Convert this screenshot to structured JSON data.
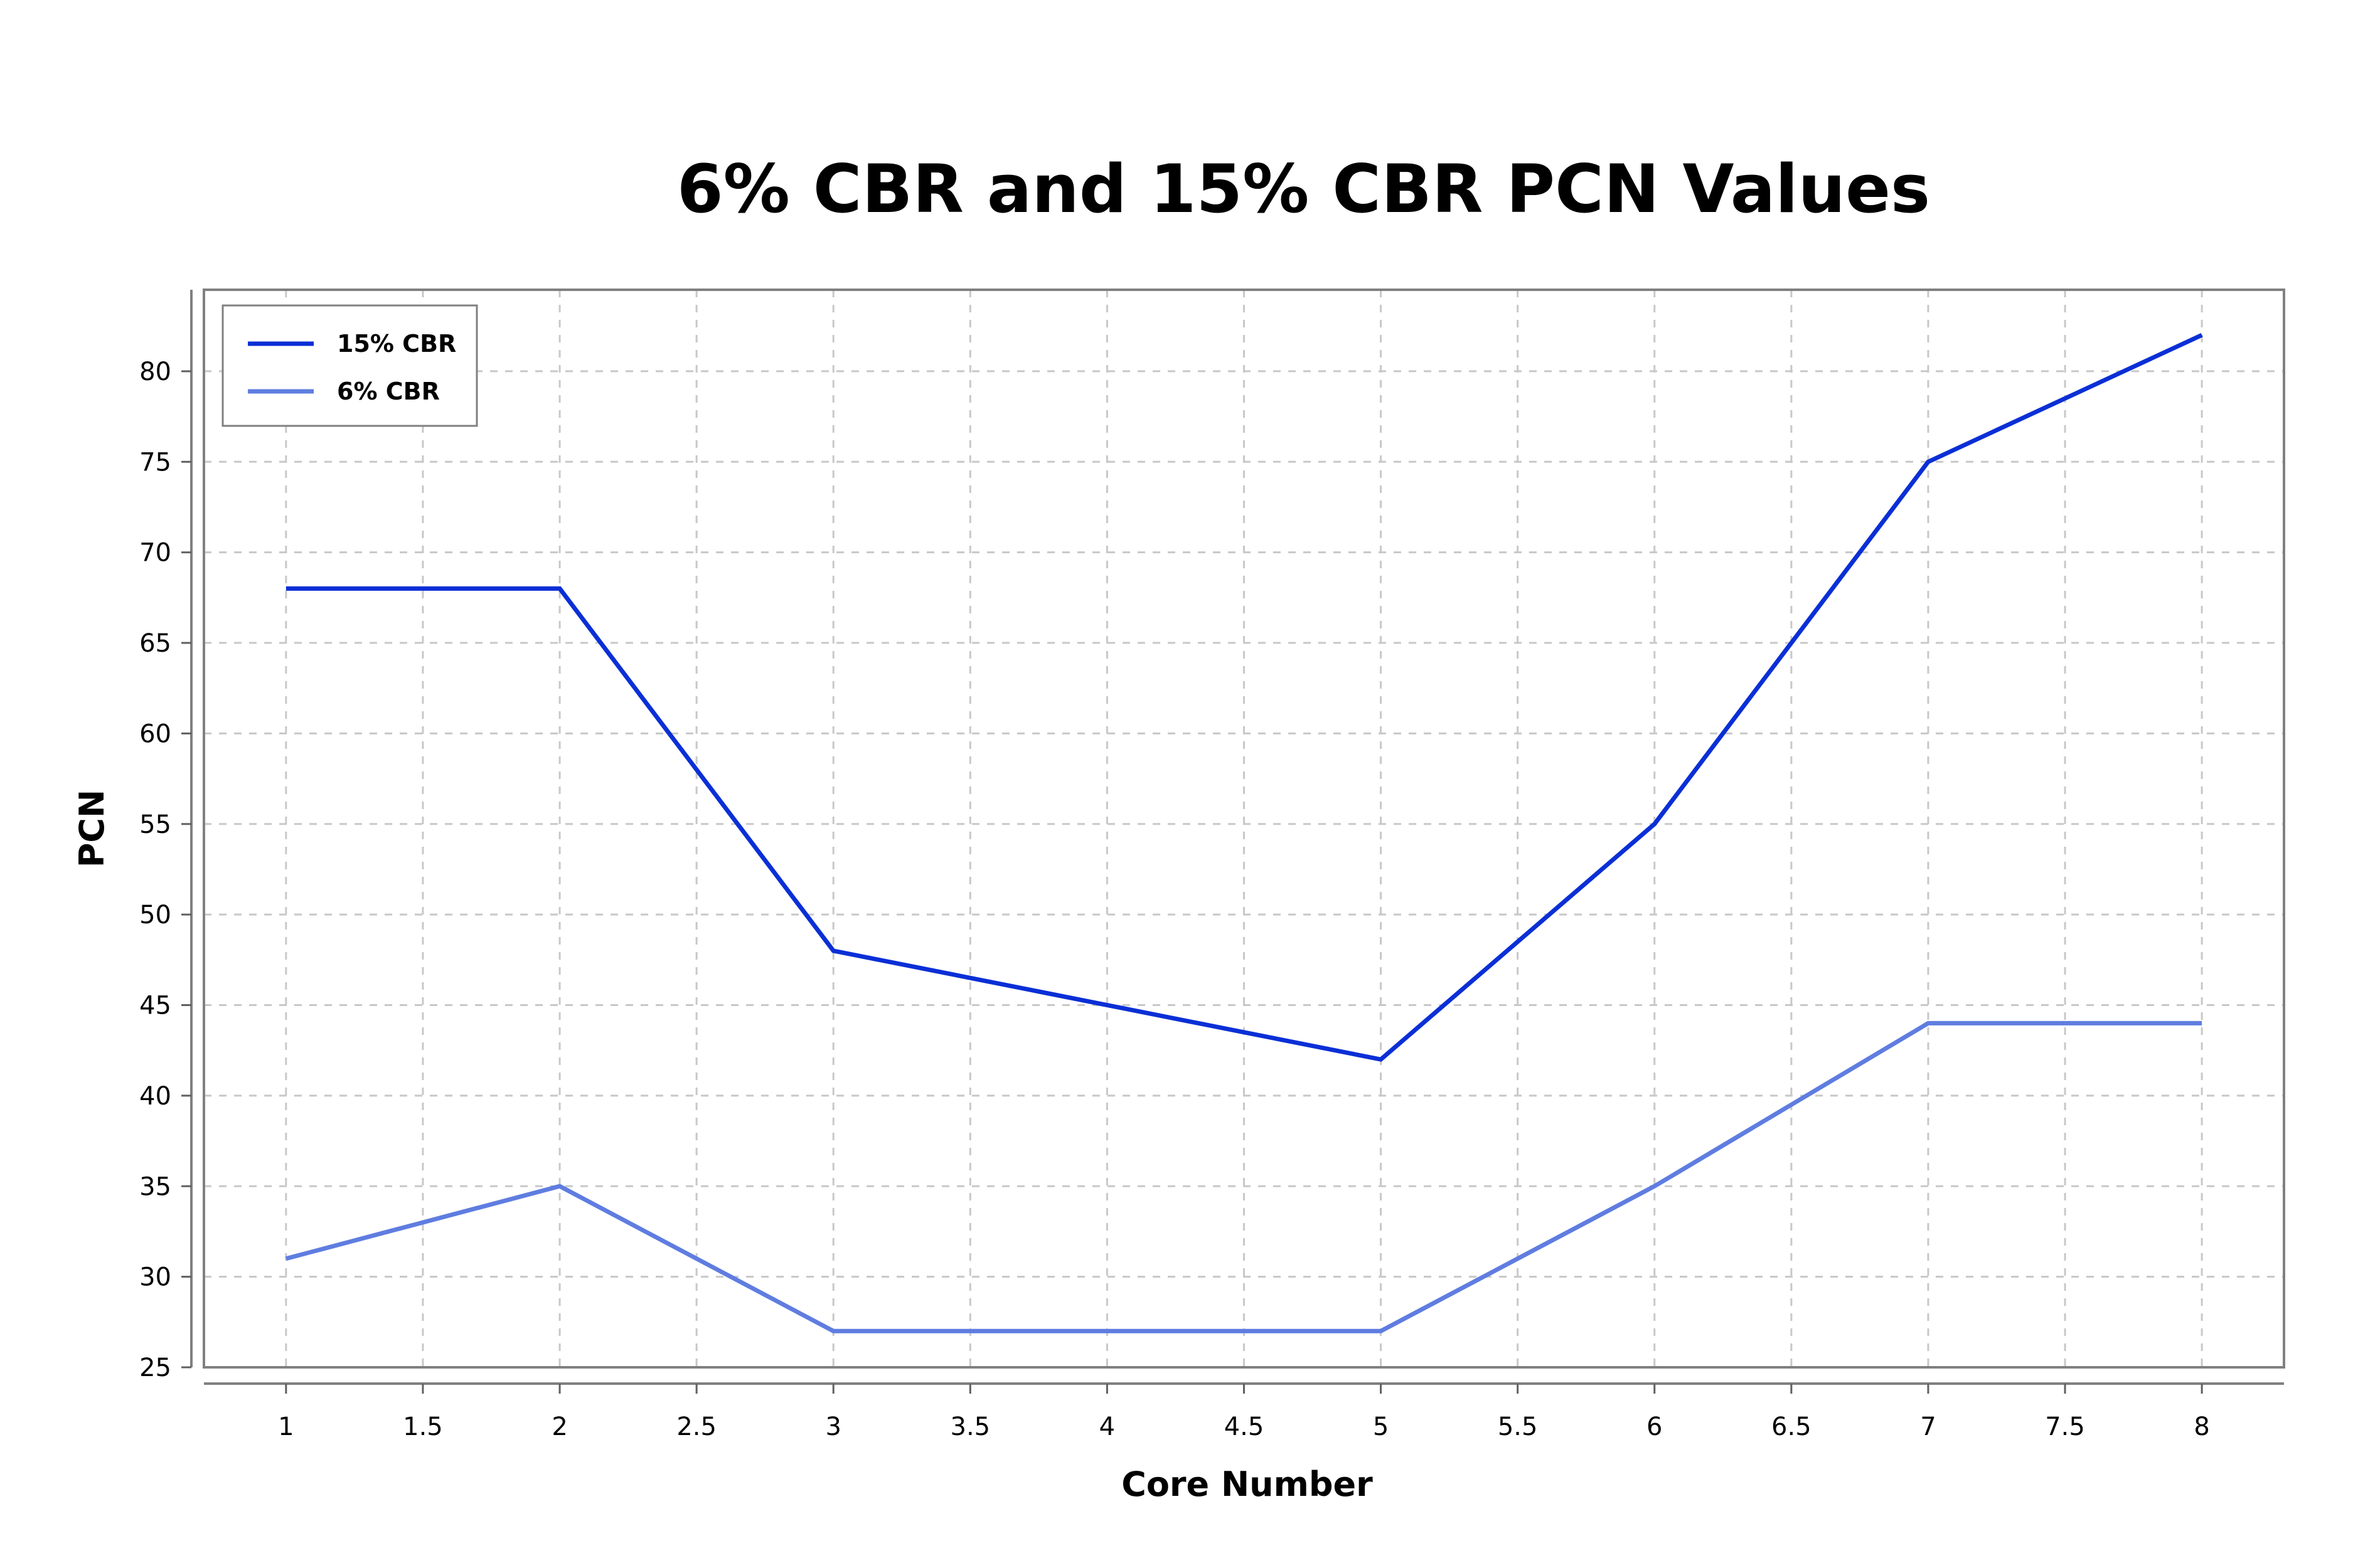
{
  "chart_data": {
    "type": "line",
    "title": "6% CBR and 15% CBR PCN Values",
    "xlabel": "Core Number",
    "ylabel": "PCN",
    "xlim": [
      0.7,
      8.3
    ],
    "ylim": [
      25,
      84.5
    ],
    "x_ticks": [
      "1",
      "1.5",
      "2",
      "2.5",
      "3",
      "3.5",
      "4",
      "4.5",
      "5",
      "5.5",
      "6",
      "6.5",
      "7",
      "7.5",
      "8"
    ],
    "y_ticks": [
      "25",
      "30",
      "35",
      "40",
      "45",
      "50",
      "55",
      "60",
      "65",
      "70",
      "75",
      "80"
    ],
    "x": [
      1,
      2,
      3,
      5,
      6,
      7,
      8
    ],
    "series": [
      {
        "name": "15% CBR",
        "color": "#0a2fd6",
        "values": [
          68,
          68,
          48,
          42,
          55,
          75,
          82
        ]
      },
      {
        "name": "6% CBR",
        "color": "#5f7de0",
        "values": [
          31,
          35,
          27,
          27,
          35,
          44,
          44
        ]
      }
    ],
    "grid": true,
    "legend_position": "top-left"
  }
}
